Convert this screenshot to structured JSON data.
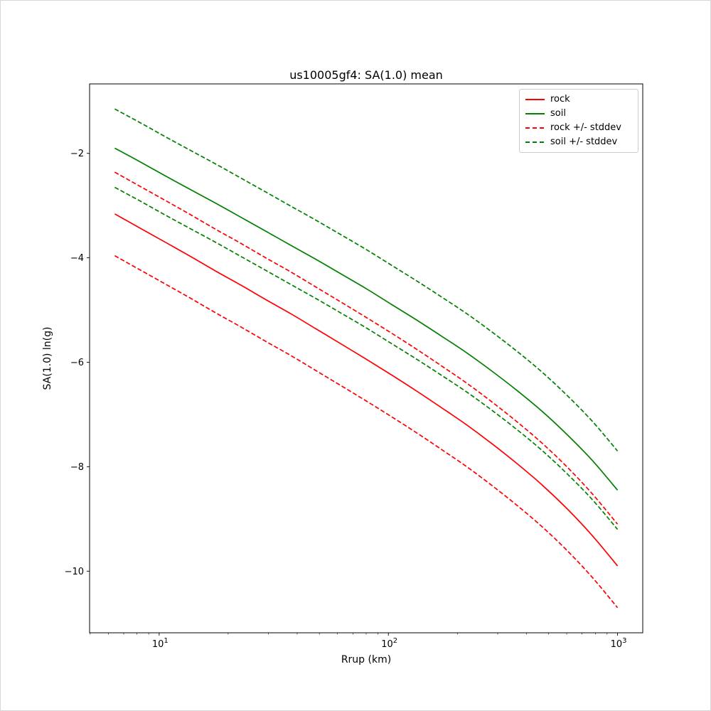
{
  "figure": {
    "title": "us10005gf4: SA(1.0) mean",
    "xlabel": "Rrup (km)",
    "ylabel": "SA(1.0) ln(g)"
  },
  "legend": {
    "position": "upper right",
    "items": [
      {
        "label": "rock",
        "color": "#ff0000",
        "style": "solid"
      },
      {
        "label": "soil",
        "color": "#008000",
        "style": "solid"
      },
      {
        "label": "rock +/- stddev",
        "color": "#ff0000",
        "style": "dashed"
      },
      {
        "label": "soil +/- stddev",
        "color": "#008000",
        "style": "dashed"
      }
    ]
  },
  "chart_data": {
    "type": "line",
    "title": "us10005gf4: SA(1.0) mean",
    "xlabel": "Rrup (km)",
    "ylabel": "SA(1.0) ln(g)",
    "xscale": "log",
    "grid": false,
    "xlim": [
      4.97,
      1288
    ],
    "ylim": [
      -11.18,
      -0.67
    ],
    "xticks": [
      10,
      100,
      1000
    ],
    "yticks": [
      -2,
      -4,
      -6,
      -8,
      -10
    ],
    "x": [
      6.4,
      8.24,
      10.62,
      13.65,
      17.58,
      22.65,
      29.17,
      37.5,
      48.31,
      62.23,
      79.98,
      103.0,
      132.7,
      170.6,
      219.8,
      283.1,
      364.1,
      468.8,
      603.9,
      776.2,
      1000
    ],
    "series": [
      {
        "name": "rock",
        "color": "#ff0000",
        "style": "solid",
        "values": [
          -3.16,
          -3.43,
          -3.7,
          -3.97,
          -4.25,
          -4.52,
          -4.8,
          -5.07,
          -5.36,
          -5.65,
          -5.94,
          -6.24,
          -6.55,
          -6.87,
          -7.2,
          -7.56,
          -7.94,
          -8.35,
          -8.81,
          -9.32,
          -9.9
        ]
      },
      {
        "name": "soil",
        "color": "#008000",
        "style": "solid",
        "values": [
          -1.9,
          -2.16,
          -2.43,
          -2.69,
          -2.95,
          -3.22,
          -3.49,
          -3.76,
          -4.03,
          -4.31,
          -4.59,
          -4.89,
          -5.19,
          -5.5,
          -5.82,
          -6.17,
          -6.54,
          -6.94,
          -7.39,
          -7.88,
          -8.45
        ]
      },
      {
        "name": "rock +stddev",
        "color": "#ff0000",
        "style": "dashed",
        "values": [
          -2.36,
          -2.63,
          -2.9,
          -3.17,
          -3.45,
          -3.72,
          -4.0,
          -4.27,
          -4.56,
          -4.85,
          -5.14,
          -5.44,
          -5.75,
          -6.07,
          -6.4,
          -6.76,
          -7.14,
          -7.55,
          -8.01,
          -8.52,
          -9.1
        ]
      },
      {
        "name": "rock -stddev",
        "color": "#ff0000",
        "style": "dashed",
        "values": [
          -3.96,
          -4.23,
          -4.5,
          -4.77,
          -5.05,
          -5.32,
          -5.6,
          -5.87,
          -6.16,
          -6.45,
          -6.74,
          -7.04,
          -7.35,
          -7.67,
          -8.0,
          -8.36,
          -8.74,
          -9.15,
          -9.61,
          -10.12,
          -10.7
        ]
      },
      {
        "name": "soil +stddev",
        "color": "#008000",
        "style": "dashed",
        "values": [
          -1.15,
          -1.41,
          -1.68,
          -1.94,
          -2.2,
          -2.47,
          -2.74,
          -3.01,
          -3.28,
          -3.56,
          -3.84,
          -4.14,
          -4.44,
          -4.75,
          -5.07,
          -5.42,
          -5.79,
          -6.19,
          -6.64,
          -7.13,
          -7.7
        ]
      },
      {
        "name": "soil -stddev",
        "color": "#008000",
        "style": "dashed",
        "values": [
          -2.65,
          -2.91,
          -3.18,
          -3.44,
          -3.7,
          -3.97,
          -4.24,
          -4.51,
          -4.78,
          -5.06,
          -5.34,
          -5.64,
          -5.94,
          -6.25,
          -6.57,
          -6.92,
          -7.29,
          -7.69,
          -8.14,
          -8.63,
          -9.2
        ]
      }
    ]
  }
}
